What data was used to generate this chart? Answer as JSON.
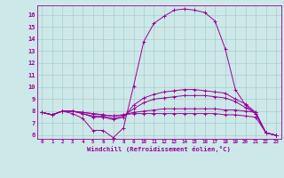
{
  "xlabel": "Windchill (Refroidissement éolien,°C)",
  "xlim": [
    -0.5,
    23.5
  ],
  "ylim": [
    5.7,
    16.8
  ],
  "yticks": [
    6,
    7,
    8,
    9,
    10,
    11,
    12,
    13,
    14,
    15,
    16
  ],
  "xticks": [
    0,
    1,
    2,
    3,
    4,
    5,
    6,
    7,
    8,
    9,
    10,
    11,
    12,
    13,
    14,
    15,
    16,
    17,
    18,
    19,
    20,
    21,
    22,
    23
  ],
  "bg_color": "#cce8e8",
  "grid_color": "#aacccc",
  "line_color": "#990099",
  "curves": [
    {
      "x": [
        0,
        1,
        2,
        3,
        4,
        5,
        6,
        7,
        8,
        9,
        10,
        11,
        12,
        13,
        14,
        15,
        16,
        17,
        18,
        19,
        20,
        21,
        22,
        23
      ],
      "y": [
        7.9,
        7.7,
        8.0,
        7.8,
        7.4,
        6.4,
        6.4,
        5.8,
        6.6,
        10.1,
        13.8,
        15.3,
        15.9,
        16.4,
        16.5,
        16.4,
        16.2,
        15.5,
        13.2,
        9.8,
        8.5,
        7.8,
        6.2,
        6.0
      ]
    },
    {
      "x": [
        0,
        1,
        2,
        3,
        4,
        5,
        6,
        7,
        8,
        9,
        10,
        11,
        12,
        13,
        14,
        15,
        16,
        17,
        18,
        19,
        20,
        21,
        22,
        23
      ],
      "y": [
        7.9,
        7.7,
        8.0,
        8.0,
        7.8,
        7.5,
        7.5,
        7.3,
        7.5,
        8.5,
        9.1,
        9.4,
        9.6,
        9.7,
        9.8,
        9.8,
        9.7,
        9.6,
        9.5,
        9.0,
        8.6,
        7.9,
        6.2,
        6.0
      ]
    },
    {
      "x": [
        0,
        1,
        2,
        3,
        4,
        5,
        6,
        7,
        8,
        9,
        10,
        11,
        12,
        13,
        14,
        15,
        16,
        17,
        18,
        19,
        20,
        21,
        22,
        23
      ],
      "y": [
        7.9,
        7.7,
        8.0,
        8.0,
        7.8,
        7.6,
        7.6,
        7.4,
        7.6,
        8.2,
        8.7,
        9.0,
        9.1,
        9.2,
        9.3,
        9.3,
        9.3,
        9.2,
        9.1,
        8.8,
        8.3,
        7.8,
        6.2,
        6.0
      ]
    },
    {
      "x": [
        0,
        1,
        2,
        3,
        4,
        5,
        6,
        7,
        8,
        9,
        10,
        11,
        12,
        13,
        14,
        15,
        16,
        17,
        18,
        19,
        20,
        21,
        22,
        23
      ],
      "y": [
        7.9,
        7.7,
        8.0,
        8.0,
        7.9,
        7.8,
        7.7,
        7.6,
        7.7,
        7.9,
        8.0,
        8.1,
        8.2,
        8.2,
        8.2,
        8.2,
        8.2,
        8.2,
        8.1,
        8.1,
        8.0,
        7.9,
        6.2,
        6.0
      ]
    },
    {
      "x": [
        0,
        1,
        2,
        3,
        4,
        5,
        6,
        7,
        8,
        9,
        10,
        11,
        12,
        13,
        14,
        15,
        16,
        17,
        18,
        19,
        20,
        21,
        22,
        23
      ],
      "y": [
        7.9,
        7.7,
        8.0,
        8.0,
        7.9,
        7.8,
        7.7,
        7.6,
        7.7,
        7.8,
        7.8,
        7.8,
        7.8,
        7.8,
        7.8,
        7.8,
        7.8,
        7.8,
        7.7,
        7.7,
        7.6,
        7.5,
        6.2,
        6.0
      ]
    }
  ]
}
